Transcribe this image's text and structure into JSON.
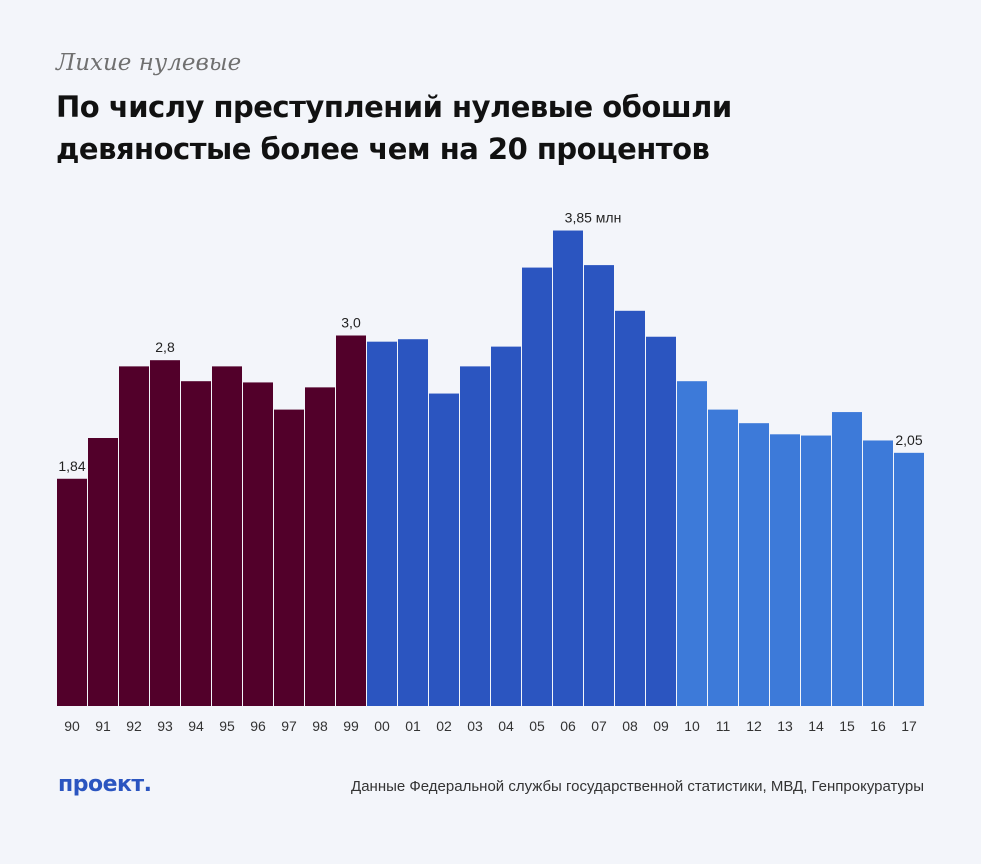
{
  "kicker": "Лихие нулевые",
  "title_line1": "По числу преступлений нулевые обошли",
  "title_line2": "девяностые более чем на 20 процентов",
  "logo": "проект.",
  "source": "Данные Федеральной службы государственной статистики, МВД, Генпрокуратуры",
  "colors": {
    "nineties": "#52002a",
    "two_thousands": "#2b55c0",
    "twenty_tens": "#3d7ad9",
    "background": "#f3f5fa"
  },
  "chart_data": {
    "type": "bar",
    "unit": "млн",
    "categories": [
      "90",
      "91",
      "92",
      "93",
      "94",
      "95",
      "96",
      "97",
      "98",
      "99",
      "00",
      "01",
      "02",
      "03",
      "04",
      "05",
      "06",
      "07",
      "08",
      "09",
      "10",
      "11",
      "12",
      "13",
      "14",
      "15",
      "16",
      "17"
    ],
    "values": [
      1.84,
      2.17,
      2.75,
      2.8,
      2.63,
      2.75,
      2.62,
      2.4,
      2.58,
      3.0,
      2.95,
      2.97,
      2.53,
      2.75,
      2.91,
      3.55,
      3.85,
      3.57,
      3.2,
      2.99,
      2.63,
      2.4,
      2.29,
      2.2,
      2.19,
      2.38,
      2.15,
      2.05
    ],
    "data_labels": [
      {
        "category": "90",
        "text": "1,84"
      },
      {
        "category": "93",
        "text": "2,8"
      },
      {
        "category": "99",
        "text": "3,0"
      },
      {
        "category": "06",
        "text": "3,85 млн"
      },
      {
        "category": "17",
        "text": "2,05"
      }
    ],
    "ylim": [
      0,
      4
    ],
    "grid": false,
    "legend": "none"
  }
}
